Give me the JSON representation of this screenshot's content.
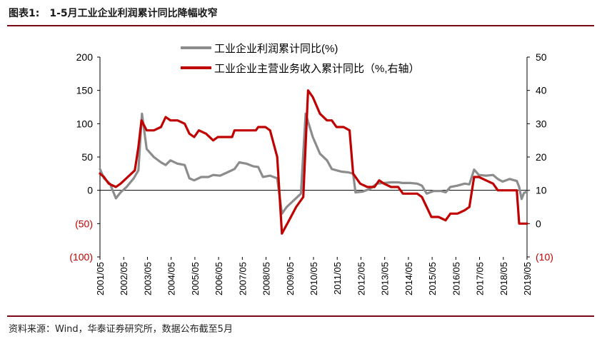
{
  "header": {
    "label": "图表1:",
    "text": "1-5月工业企业利润累计同比降幅收窄"
  },
  "source": "资料来源：Wind，华泰证券研究所，数据公布截至5月",
  "colors": {
    "accent": "#7a0b16",
    "profit": "#8c8c8c",
    "revenue": "#c00000",
    "neg_tick": "#c00000"
  },
  "chart_data": {
    "type": "line",
    "title": "1-5月工业企业利润累计同比降幅收窄",
    "xlabel": "",
    "ylabel": "",
    "ylim_left": [
      -100,
      200
    ],
    "ylim_right": [
      -10,
      50
    ],
    "left_ticks": [
      {
        "v": 200,
        "label": "200"
      },
      {
        "v": 150,
        "label": "150"
      },
      {
        "v": 100,
        "label": "100"
      },
      {
        "v": 50,
        "label": "50"
      },
      {
        "v": 0,
        "label": "0"
      },
      {
        "v": -50,
        "label": "(50)"
      },
      {
        "v": -100,
        "label": "(100)"
      }
    ],
    "right_ticks": [
      {
        "v": 50,
        "label": "50"
      },
      {
        "v": 40,
        "label": "40"
      },
      {
        "v": 30,
        "label": "30"
      },
      {
        "v": 20,
        "label": "20"
      },
      {
        "v": 10,
        "label": "10"
      },
      {
        "v": 0,
        "label": "0"
      },
      {
        "v": -10,
        "label": "(10)"
      }
    ],
    "categories": [
      "2001/05",
      "2002/05",
      "2003/05",
      "2004/05",
      "2005/05",
      "2006/05",
      "2007/05",
      "2008/05",
      "2009/05",
      "2010/05",
      "2011/05",
      "2012/05",
      "2013/05",
      "2014/05",
      "2015/05",
      "2016/05",
      "2017/05",
      "2018/05",
      "2019/05"
    ],
    "legend_position": "top-center",
    "series": [
      {
        "name": "工业企业利润累计同比(%)",
        "axis": "left",
        "color": "#8c8c8c",
        "points": [
          [
            2001.33,
            32
          ],
          [
            2001.5,
            18
          ],
          [
            2001.75,
            10
          ],
          [
            2002.0,
            -12
          ],
          [
            2002.2,
            -3
          ],
          [
            2002.45,
            5
          ],
          [
            2002.75,
            18
          ],
          [
            2002.95,
            30
          ],
          [
            2003.1,
            115
          ],
          [
            2003.3,
            62
          ],
          [
            2003.6,
            50
          ],
          [
            2003.9,
            42
          ],
          [
            2004.1,
            38
          ],
          [
            2004.3,
            45
          ],
          [
            2004.6,
            40
          ],
          [
            2004.9,
            38
          ],
          [
            2005.1,
            18
          ],
          [
            2005.3,
            15
          ],
          [
            2005.6,
            20
          ],
          [
            2005.9,
            20
          ],
          [
            2006.1,
            23
          ],
          [
            2006.4,
            22
          ],
          [
            2006.7,
            27
          ],
          [
            2007.0,
            32
          ],
          [
            2007.2,
            42
          ],
          [
            2007.5,
            40
          ],
          [
            2007.8,
            36
          ],
          [
            2008.0,
            35
          ],
          [
            2008.2,
            20
          ],
          [
            2008.5,
            22
          ],
          [
            2008.8,
            18
          ],
          [
            2009.0,
            -35
          ],
          [
            2009.2,
            -25
          ],
          [
            2009.5,
            -15
          ],
          [
            2009.8,
            -5
          ],
          [
            2010.0,
            115
          ],
          [
            2010.3,
            80
          ],
          [
            2010.6,
            55
          ],
          [
            2010.9,
            45
          ],
          [
            2011.1,
            32
          ],
          [
            2011.5,
            28
          ],
          [
            2011.8,
            27
          ],
          [
            2012.0,
            25
          ],
          [
            2012.1,
            -3
          ],
          [
            2012.4,
            -2
          ],
          [
            2012.7,
            2
          ],
          [
            2013.0,
            10
          ],
          [
            2013.3,
            11
          ],
          [
            2013.6,
            12
          ],
          [
            2013.9,
            12
          ],
          [
            2014.1,
            11
          ],
          [
            2014.4,
            11
          ],
          [
            2014.7,
            10
          ],
          [
            2014.9,
            7
          ],
          [
            2015.1,
            -5
          ],
          [
            2015.4,
            -1
          ],
          [
            2015.7,
            -1
          ],
          [
            2015.9,
            -3
          ],
          [
            2016.1,
            5
          ],
          [
            2016.4,
            7
          ],
          [
            2016.7,
            10
          ],
          [
            2016.9,
            9
          ],
          [
            2017.1,
            31
          ],
          [
            2017.3,
            23
          ],
          [
            2017.6,
            22
          ],
          [
            2017.9,
            23
          ],
          [
            2018.1,
            17
          ],
          [
            2018.3,
            13
          ],
          [
            2018.6,
            17
          ],
          [
            2018.9,
            14
          ],
          [
            2019.0,
            5
          ],
          [
            2019.1,
            -13
          ],
          [
            2019.2,
            -4
          ],
          [
            2019.33,
            -2
          ]
        ]
      },
      {
        "name": "工业企业主营业务收入累计同比（%,右轴）",
        "axis": "right",
        "color": "#c00000",
        "points": [
          [
            2001.33,
            15
          ],
          [
            2001.5,
            14
          ],
          [
            2001.7,
            12
          ],
          [
            2002.0,
            11
          ],
          [
            2002.2,
            12
          ],
          [
            2002.5,
            14
          ],
          [
            2002.8,
            16
          ],
          [
            2002.95,
            23
          ],
          [
            2003.08,
            31
          ],
          [
            2003.3,
            28
          ],
          [
            2003.6,
            28
          ],
          [
            2003.9,
            29
          ],
          [
            2004.1,
            32
          ],
          [
            2004.3,
            31
          ],
          [
            2004.6,
            31
          ],
          [
            2004.9,
            30
          ],
          [
            2005.1,
            27
          ],
          [
            2005.3,
            26
          ],
          [
            2005.5,
            28
          ],
          [
            2005.8,
            27
          ],
          [
            2006.1,
            25
          ],
          [
            2006.3,
            26
          ],
          [
            2006.6,
            26
          ],
          [
            2006.9,
            26
          ],
          [
            2007.0,
            28
          ],
          [
            2007.3,
            28
          ],
          [
            2007.6,
            28
          ],
          [
            2007.9,
            28
          ],
          [
            2008.0,
            29
          ],
          [
            2008.3,
            29
          ],
          [
            2008.5,
            28
          ],
          [
            2008.8,
            20
          ],
          [
            2009.0,
            -3
          ],
          [
            2009.3,
            1
          ],
          [
            2009.6,
            5
          ],
          [
            2009.9,
            8
          ],
          [
            2010.1,
            40
          ],
          [
            2010.3,
            38
          ],
          [
            2010.6,
            33
          ],
          [
            2010.9,
            31
          ],
          [
            2011.1,
            31
          ],
          [
            2011.3,
            29
          ],
          [
            2011.6,
            29
          ],
          [
            2011.85,
            28
          ],
          [
            2012.0,
            15
          ],
          [
            2012.3,
            12
          ],
          [
            2012.6,
            11
          ],
          [
            2012.9,
            11
          ],
          [
            2013.1,
            13
          ],
          [
            2013.3,
            12
          ],
          [
            2013.6,
            11
          ],
          [
            2013.9,
            11
          ],
          [
            2014.1,
            9
          ],
          [
            2014.4,
            9
          ],
          [
            2014.7,
            9
          ],
          [
            2014.9,
            8
          ],
          [
            2015.1,
            5
          ],
          [
            2015.3,
            2
          ],
          [
            2015.6,
            2
          ],
          [
            2015.9,
            1
          ],
          [
            2016.1,
            3
          ],
          [
            2016.4,
            3
          ],
          [
            2016.7,
            4
          ],
          [
            2016.9,
            5
          ],
          [
            2017.1,
            14
          ],
          [
            2017.3,
            14
          ],
          [
            2017.6,
            13
          ],
          [
            2017.9,
            12
          ],
          [
            2018.1,
            10
          ],
          [
            2018.3,
            10
          ],
          [
            2018.6,
            10
          ],
          [
            2018.9,
            10
          ],
          [
            2019.0,
            0
          ],
          [
            2019.15,
            0
          ],
          [
            2019.33,
            0
          ]
        ]
      }
    ]
  }
}
